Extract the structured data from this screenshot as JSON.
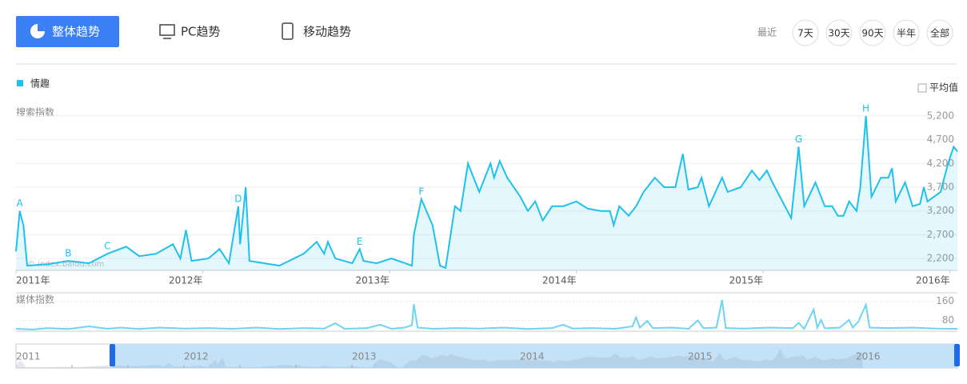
{
  "tabs": {
    "overall": "整体趋势",
    "pc": "PC趋势",
    "mobile": "移动趋势"
  },
  "range": {
    "label": "最近",
    "options": [
      "7天",
      "30天",
      "90天",
      "半年",
      "全部"
    ]
  },
  "average_toggle": "平均值",
  "watermark": "© index.baidu.com",
  "navigator": {
    "labels": [
      "2011",
      "2012",
      "2013",
      "2014",
      "2015",
      "2016"
    ]
  },
  "chart_data": [
    {
      "type": "line",
      "area": true,
      "y_label": "搜索指数",
      "x": [
        2011.0,
        2011.02,
        2011.04,
        2011.06,
        2011.17,
        2011.28,
        2011.39,
        2011.49,
        2011.59,
        2011.66,
        2011.75,
        2011.84,
        2011.88,
        2011.91,
        2011.94,
        2012.03,
        2012.09,
        2012.14,
        2012.19,
        2012.2,
        2012.23,
        2012.25,
        2012.33,
        2012.41,
        2012.54,
        2012.61,
        2012.65,
        2012.67,
        2012.71,
        2012.8,
        2012.84,
        2012.86,
        2012.93,
        2013.01,
        2013.12,
        2013.13,
        2013.17,
        2013.23,
        2013.27,
        2013.3,
        2013.35,
        2013.38,
        2013.42,
        2013.46,
        2013.48,
        2013.54,
        2013.56,
        2013.59,
        2013.63,
        2013.7,
        2013.74,
        2013.78,
        2013.82,
        2013.87,
        2013.93,
        2014.0,
        2014.06,
        2014.13,
        2014.18,
        2014.2,
        2014.23,
        2014.28,
        2014.32,
        2014.36,
        2014.42,
        2014.47,
        2014.53,
        2014.57,
        2014.6,
        2014.65,
        2014.67,
        2014.71,
        2014.78,
        2014.81,
        2014.88,
        2014.94,
        2014.98,
        2015.02,
        2015.05,
        2015.09,
        2015.15,
        2015.19,
        2015.22,
        2015.28,
        2015.33,
        2015.37,
        2015.4,
        2015.43,
        2015.46,
        2015.5,
        2015.52,
        2015.55,
        2015.58,
        2015.63,
        2015.67,
        2015.69,
        2015.71,
        2015.76,
        2015.8,
        2015.84,
        2015.86,
        2015.88,
        2015.95,
        2015.99,
        2016.02,
        2016.04
      ],
      "series": [
        {
          "name": "情趣",
          "color": "#1ec1ee",
          "values": [
            2350,
            3200,
            2900,
            2050,
            2080,
            2150,
            2100,
            2300,
            2450,
            2250,
            2300,
            2500,
            2200,
            2800,
            2150,
            2200,
            2400,
            2100,
            3300,
            2500,
            3700,
            2150,
            2100,
            2050,
            2300,
            2550,
            2300,
            2550,
            2200,
            2100,
            2400,
            2150,
            2100,
            2200,
            2050,
            2700,
            3450,
            2900,
            2050,
            2000,
            3300,
            3200,
            4200,
            3800,
            3600,
            4200,
            3900,
            4250,
            3900,
            3500,
            3200,
            3400,
            3000,
            3300,
            3300,
            3400,
            3250,
            3200,
            3200,
            2900,
            3300,
            3100,
            3300,
            3600,
            3900,
            3700,
            3700,
            4400,
            3650,
            3700,
            3900,
            3300,
            3900,
            3600,
            3700,
            4050,
            3850,
            4050,
            3800,
            3500,
            3050,
            4550,
            3300,
            3800,
            3300,
            3300,
            3100,
            3100,
            3400,
            3200,
            3700,
            5200,
            3500,
            3900,
            3900,
            4100,
            3400,
            3800,
            3300,
            3350,
            3700,
            3400,
            3600,
            4200,
            4550,
            4450
          ]
        }
      ],
      "xlim": [
        2011,
        2016.04
      ],
      "ylim": [
        1950,
        5450
      ],
      "xticks": [
        {
          "value": 2011,
          "label": "2011年"
        },
        {
          "value": 2012,
          "label": "2012年"
        },
        {
          "value": 2013,
          "label": "2013年"
        },
        {
          "value": 2014,
          "label": "2014年"
        },
        {
          "value": 2015,
          "label": "2015年"
        },
        {
          "value": 2016,
          "label": "2016年"
        }
      ],
      "yticks": [
        {
          "value": 2200,
          "label": "2,200"
        },
        {
          "value": 2700,
          "label": "2,700"
        },
        {
          "value": 3200,
          "label": "3,200"
        },
        {
          "value": 3700,
          "label": "3,700"
        },
        {
          "value": 4200,
          "label": "4,200"
        },
        {
          "value": 4700,
          "label": "4,700"
        },
        {
          "value": 5200,
          "label": "5,200"
        }
      ],
      "grid": true,
      "annotations": [
        {
          "text": "A",
          "x": 2011.02,
          "y": 3200
        },
        {
          "text": "B",
          "x": 2011.28,
          "y": 2150
        },
        {
          "text": "C",
          "x": 2011.49,
          "y": 2300
        },
        {
          "text": "D",
          "x": 2012.19,
          "y": 3300
        },
        {
          "text": "E",
          "x": 2012.84,
          "y": 2400
        },
        {
          "text": "F",
          "x": 2013.17,
          "y": 3450
        },
        {
          "text": "G",
          "x": 2015.19,
          "y": 4550
        },
        {
          "text": "H",
          "x": 2015.55,
          "y": 5200
        }
      ]
    },
    {
      "type": "line",
      "area": false,
      "y_label": "媒体指数",
      "x": [
        2011.0,
        2011.09,
        2011.17,
        2011.28,
        2011.39,
        2011.49,
        2011.56,
        2011.66,
        2011.77,
        2011.9,
        2012.03,
        2012.16,
        2012.29,
        2012.41,
        2012.54,
        2012.65,
        2012.71,
        2012.76,
        2012.88,
        2012.95,
        2013.01,
        2013.08,
        2013.12,
        2013.13,
        2013.15,
        2013.23,
        2013.36,
        2013.48,
        2013.61,
        2013.74,
        2013.87,
        2013.93,
        2013.98,
        2014.08,
        2014.21,
        2014.3,
        2014.32,
        2014.34,
        2014.38,
        2014.41,
        2014.51,
        2014.6,
        2014.65,
        2014.68,
        2014.75,
        2014.78,
        2014.8,
        2014.9,
        2015.03,
        2015.16,
        2015.19,
        2015.22,
        2015.27,
        2015.29,
        2015.31,
        2015.33,
        2015.41,
        2015.46,
        2015.48,
        2015.51,
        2015.55,
        2015.57,
        2015.67,
        2015.8,
        2015.93,
        2016.04
      ],
      "series": [
        {
          "color": "#6fd3f2",
          "values": [
            45,
            42,
            48,
            44,
            55,
            45,
            50,
            44,
            50,
            46,
            48,
            45,
            50,
            44,
            48,
            46,
            68,
            45,
            48,
            62,
            45,
            50,
            60,
            148,
            50,
            45,
            48,
            46,
            50,
            44,
            48,
            62,
            46,
            48,
            45,
            55,
            92,
            50,
            78,
            48,
            50,
            45,
            80,
            48,
            50,
            165,
            48,
            46,
            50,
            48,
            70,
            45,
            125,
            50,
            82,
            47,
            50,
            82,
            50,
            75,
            145,
            50,
            48,
            50,
            46,
            45
          ]
        }
      ],
      "xlim": [
        2011,
        2016.04
      ],
      "ylim": [
        35,
        195
      ],
      "yticks": [
        80,
        160
      ],
      "grid": true
    }
  ]
}
